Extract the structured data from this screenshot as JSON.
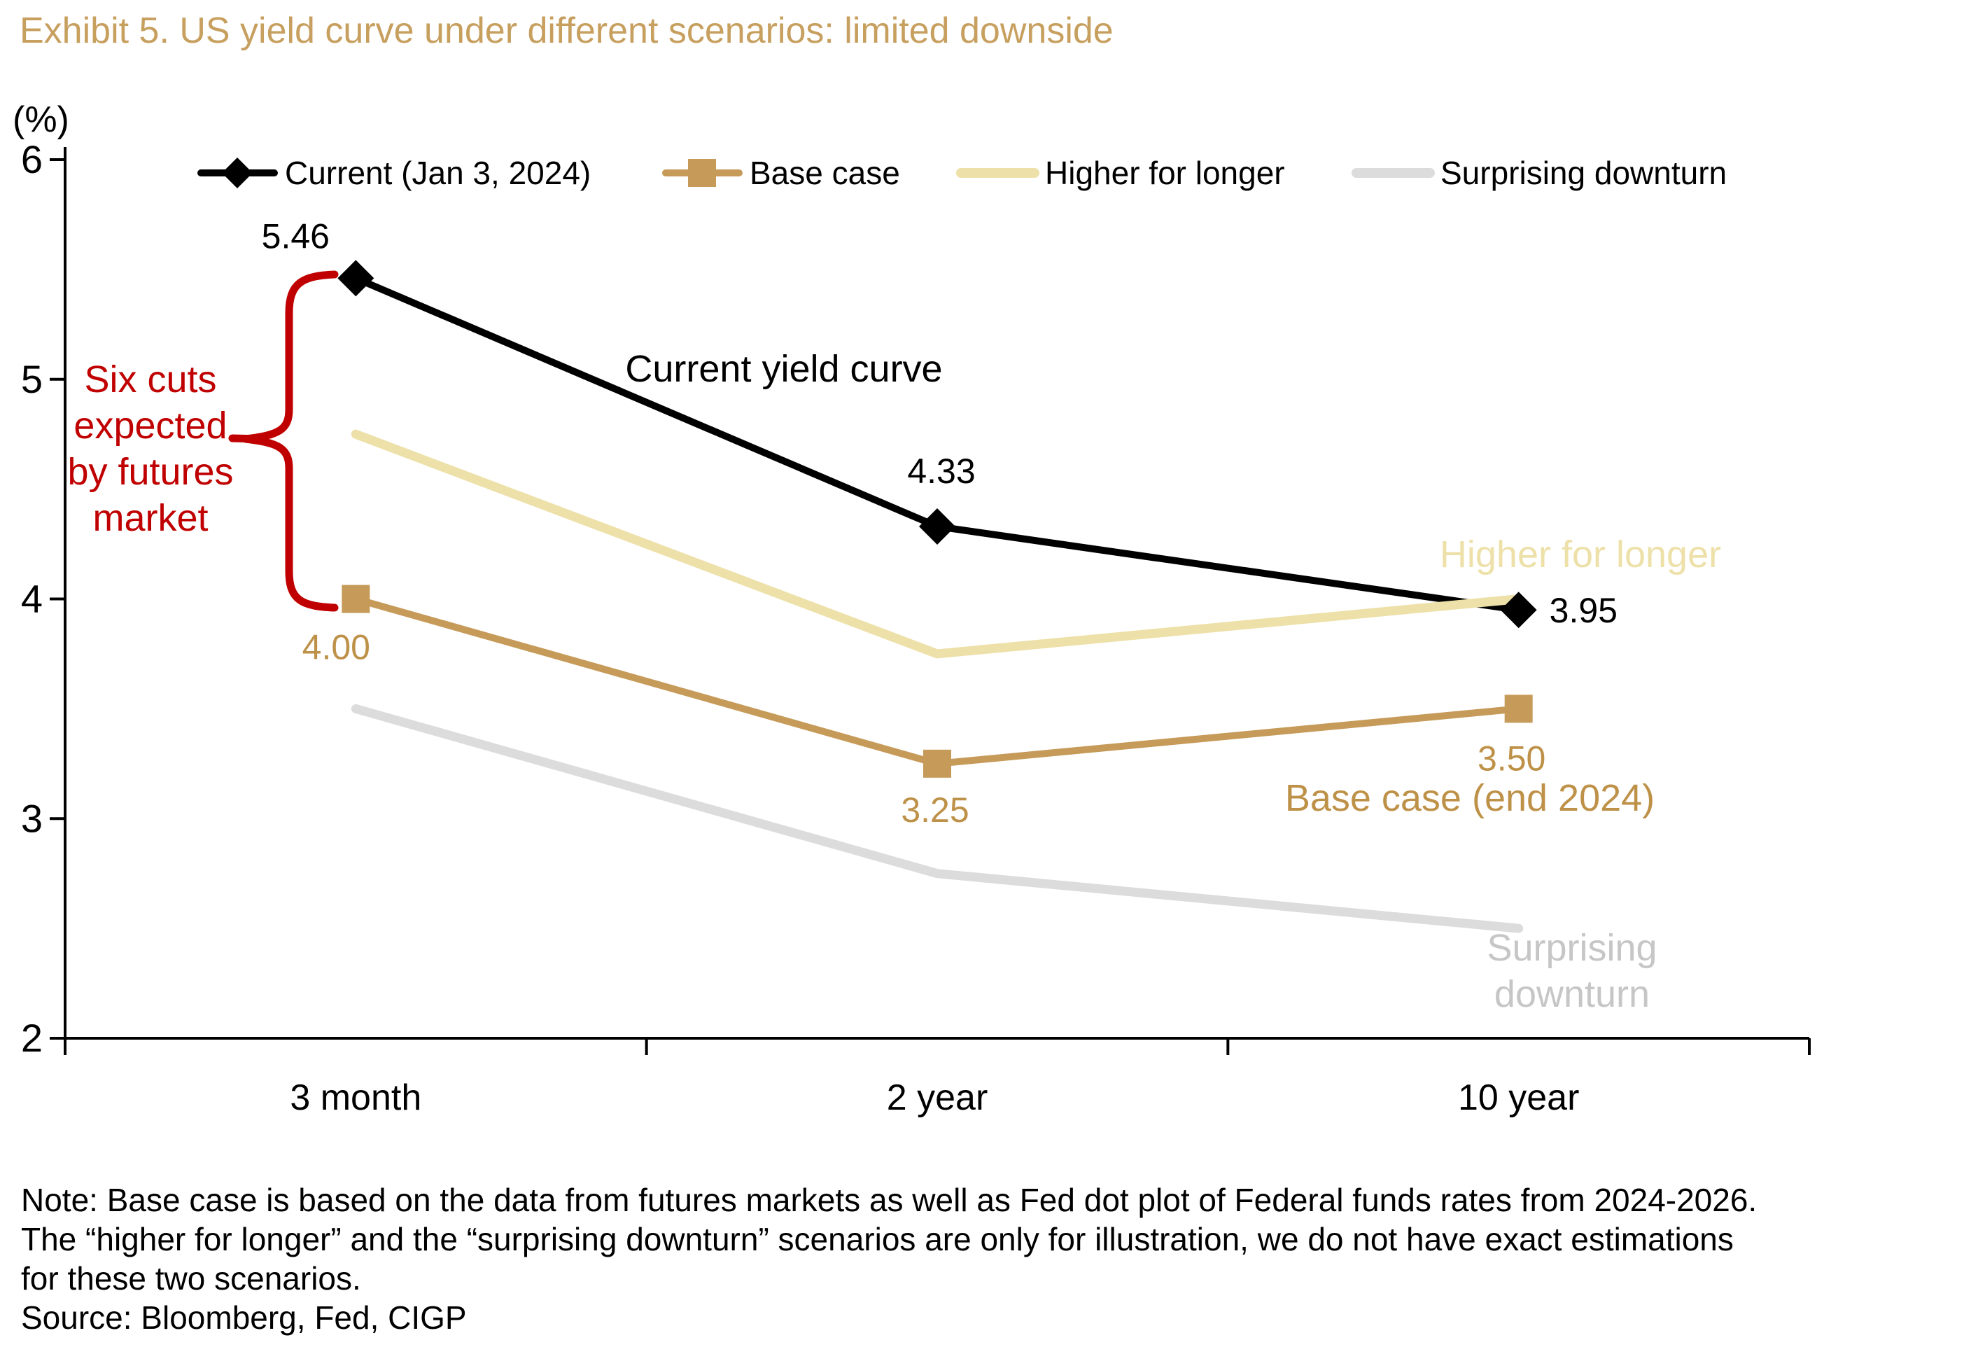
{
  "title": "Exhibit 5. US yield curve under different scenarios: limited downside",
  "y_axis_unit_label": "(%)",
  "colors": {
    "title_gold": "#C79F5E",
    "current_black": "#000000",
    "base_case_tan_line": "#C69A58",
    "base_case_tan_text": "#BE9148",
    "higher_for_longer_cream": "#EDE0A8",
    "surprising_downturn_gray_line": "#DCDCDC",
    "surprising_downturn_gray_text": "#C6C6C6",
    "annotation_red": "#C00000"
  },
  "chart_data": {
    "type": "line",
    "title": "US yield curve under different scenarios",
    "categories": [
      "3 month",
      "2 year",
      "10 year"
    ],
    "series": [
      {
        "name": "Current (Jan 3, 2024)",
        "values": [
          5.46,
          4.33,
          3.95
        ],
        "color": "#000000",
        "marker": "diamond",
        "show_labels": true
      },
      {
        "name": "Base case",
        "values": [
          4.0,
          3.25,
          3.5
        ],
        "color": "#C69A58",
        "marker": "square",
        "show_labels": true
      },
      {
        "name": "Higher for longer",
        "values": [
          4.75,
          3.75,
          4.0
        ],
        "color": "#EDE0A8",
        "marker": "none",
        "show_labels": false
      },
      {
        "name": "Surprising downturn",
        "values": [
          3.5,
          2.75,
          2.5
        ],
        "color": "#DCDCDC",
        "marker": "none",
        "show_labels": false
      }
    ],
    "ylim": [
      2,
      6
    ],
    "y_ticks": [
      6,
      5,
      4,
      3,
      2
    ],
    "ylabel": "(%)",
    "xlabel": "",
    "grid": false,
    "legend_position": "top"
  },
  "annotations": {
    "six_cuts": "Six cuts\nexpected\nby futures\nmarket",
    "current_yield": "Current yield curve",
    "higher_for_longer": "Higher for longer",
    "base_case": "Base case (end 2024)",
    "surprising_downturn": "Surprising\ndownturn"
  },
  "note": {
    "lines": [
      "Note: Base case is based on the data from futures markets as well as Fed dot plot of Federal funds rates  from 2024-2026.",
      "The “higher for longer” and the “surprising downturn” scenarios are only for illustration, we do not have exact estimations",
      "for these two scenarios.",
      "Source: Bloomberg, Fed, CIGP"
    ]
  }
}
